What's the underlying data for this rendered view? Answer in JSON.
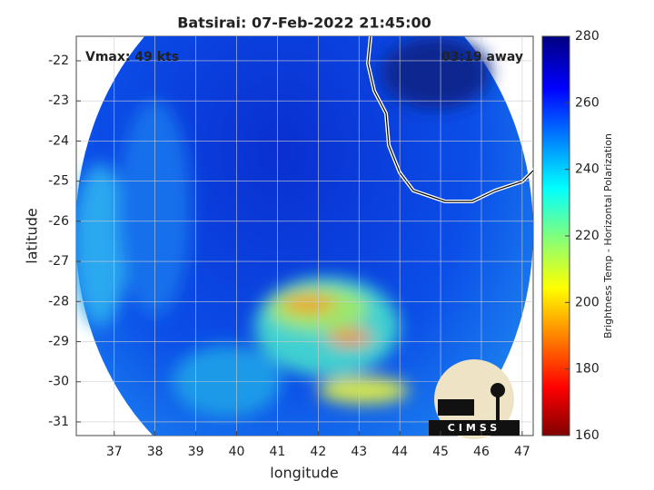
{
  "chart_data": {
    "type": "map",
    "title": "Batsirai: 07-Feb-2022 21:45:00",
    "annotations": [
      "Vmax: 49 kts",
      "03:19 away"
    ],
    "xlabel": "longitude",
    "ylabel": "latitude",
    "xlim": [
      36.07,
      47.27
    ],
    "xticks": [
      37,
      38,
      39,
      40,
      41,
      42,
      43,
      44,
      45,
      46,
      47
    ],
    "ylim": [
      -31.34,
      -21.39
    ],
    "yticks": [
      -31,
      -30,
      -29,
      -28,
      -27,
      -26,
      -25,
      -24,
      -23,
      -22
    ],
    "grid": true,
    "colorbar": {
      "label": "Brightness Temp - Horizontal Polarization",
      "lim": [
        160,
        280
      ],
      "ticks": [
        160,
        180,
        200,
        220,
        240,
        260,
        280
      ]
    },
    "logo": "CIMSS"
  }
}
